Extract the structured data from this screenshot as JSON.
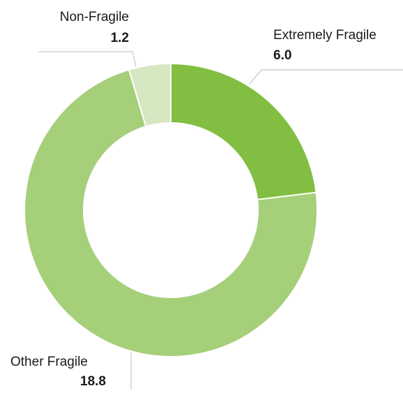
{
  "chart_data": {
    "type": "donut",
    "categories": [
      "Extremely Fragile",
      "Other Fragile",
      "Non-Fragile"
    ],
    "values": [
      6.0,
      18.8,
      1.2
    ],
    "value_labels": [
      "6.0",
      "18.8",
      "1.2"
    ],
    "colors": [
      "#82be41",
      "#a6cf7a",
      "#d6e8c2"
    ]
  }
}
